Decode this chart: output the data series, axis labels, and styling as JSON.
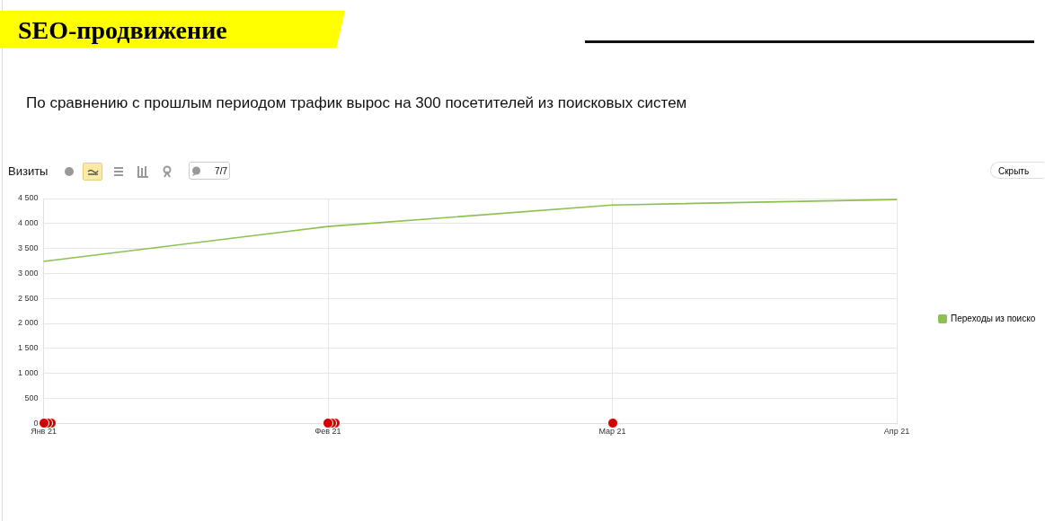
{
  "chart_data": {
    "type": "line",
    "title": "SEO-продвижение",
    "subtitle": "По сравнению с прошлым периодом трафик вырос на 300 посетителей из поисковых систем",
    "ylabel": "Визиты",
    "annotations": [
      "7/7",
      "Скрыть"
    ],
    "categories": [
      "Янв 21",
      "Фев 21",
      "Мар 21",
      "Апр 21"
    ],
    "series": [
      {
        "name": "Переходы из поиско",
        "color": "#8cc152",
        "values": [
          3240,
          3940,
          4370,
          4480
        ]
      }
    ],
    "ylim": [
      0,
      4500
    ],
    "yticks": [
      {
        "value": 0,
        "label": "0"
      },
      {
        "value": 500,
        "label": "500"
      },
      {
        "value": 1000,
        "label": "1 000"
      },
      {
        "value": 1500,
        "label": "1 500"
      },
      {
        "value": 2000,
        "label": "2 000"
      },
      {
        "value": 2500,
        "label": "2 500"
      },
      {
        "value": 3000,
        "label": "3 000"
      },
      {
        "value": 3500,
        "label": "3 500"
      },
      {
        "value": 4000,
        "label": "4 000"
      },
      {
        "value": 4500,
        "label": "4 500"
      }
    ],
    "grid": true,
    "legend": "right",
    "marker": "none",
    "line_style": "solid"
  }
}
